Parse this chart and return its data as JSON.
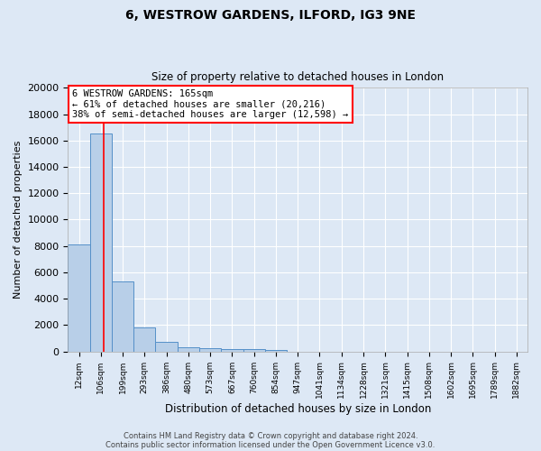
{
  "title1": "6, WESTROW GARDENS, ILFORD, IG3 9NE",
  "title2": "Size of property relative to detached houses in London",
  "xlabel": "Distribution of detached houses by size in London",
  "ylabel": "Number of detached properties",
  "bin_labels": [
    "12sqm",
    "106sqm",
    "199sqm",
    "293sqm",
    "386sqm",
    "480sqm",
    "573sqm",
    "667sqm",
    "760sqm",
    "854sqm",
    "947sqm",
    "1041sqm",
    "1134sqm",
    "1228sqm",
    "1321sqm",
    "1415sqm",
    "1508sqm",
    "1602sqm",
    "1695sqm",
    "1789sqm",
    "1882sqm"
  ],
  "bar_values": [
    8100,
    16500,
    5300,
    1850,
    700,
    320,
    230,
    200,
    170,
    130,
    0,
    0,
    0,
    0,
    0,
    0,
    0,
    0,
    0,
    0,
    0
  ],
  "bar_color": "#b8cfe8",
  "bar_edge_color": "#5590c8",
  "bin_edges_sqm": [
    12,
    106,
    199,
    293,
    386,
    480,
    573,
    667,
    760,
    854,
    947,
    1041,
    1134,
    1228,
    1321,
    1415,
    1508,
    1602,
    1695,
    1789,
    1882
  ],
  "property_sqm": 165,
  "ylim": [
    0,
    20000
  ],
  "yticks": [
    0,
    2000,
    4000,
    6000,
    8000,
    10000,
    12000,
    14000,
    16000,
    18000,
    20000
  ],
  "annotation_title": "6 WESTROW GARDENS: 165sqm",
  "annotation_line1": "← 61% of detached houses are smaller (20,216)",
  "annotation_line2": "38% of semi-detached houses are larger (12,598) →",
  "annotation_box_facecolor": "white",
  "annotation_box_edgecolor": "red",
  "vline_color": "red",
  "footer1": "Contains HM Land Registry data © Crown copyright and database right 2024.",
  "footer2": "Contains public sector information licensed under the Open Government Licence v3.0.",
  "background_color": "#dde8f5",
  "grid_color": "white",
  "figsize": [
    6.0,
    5.0
  ],
  "dpi": 100
}
